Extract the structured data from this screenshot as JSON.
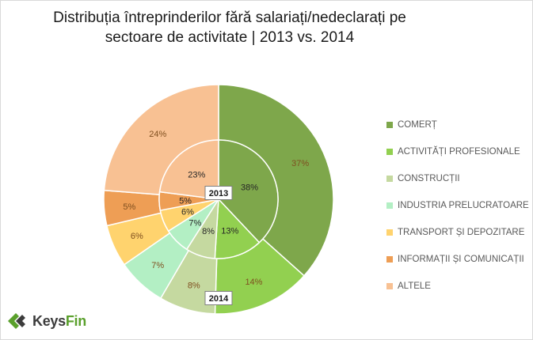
{
  "title": {
    "line1": "Distribuția întreprinderilor fără salariați/nedeclarați pe",
    "line2": "sectoare de activitate | 2013 vs. 2014"
  },
  "chart_data": {
    "type": "pie",
    "subtype": "doughnut-in-pie",
    "categories": [
      "COMERȚ",
      "ACTIVITĂȚI PROFESIONALE",
      "CONSTRUCȚII",
      "INDUSTRIA PRELUCRATOARE",
      "TRANSPORT ȘI DEPOZITARE",
      "INFORMAȚII ȘI COMUNICAȚII",
      "ALTELE"
    ],
    "colors": [
      "#7ea74b",
      "#92d050",
      "#c5d9a0",
      "#b3efc4",
      "#ffd36e",
      "#ee9e55",
      "#f8c193"
    ],
    "series": [
      {
        "name": "2013",
        "ring": "inner",
        "values": [
          38,
          13,
          8,
          7,
          6,
          5,
          23
        ],
        "labels": [
          "38%",
          "13%",
          "8%",
          "7%",
          "6%",
          "5%",
          "23%"
        ]
      },
      {
        "name": "2014",
        "ring": "outer",
        "values": [
          37,
          14,
          8,
          7,
          6,
          5,
          24
        ],
        "labels": [
          "37%",
          "14%",
          "8%",
          "7%",
          "6%",
          "5%",
          "24%"
        ]
      }
    ],
    "legend_position": "right"
  },
  "logo": {
    "text_main": "Keys",
    "text_accent": "Fin"
  }
}
